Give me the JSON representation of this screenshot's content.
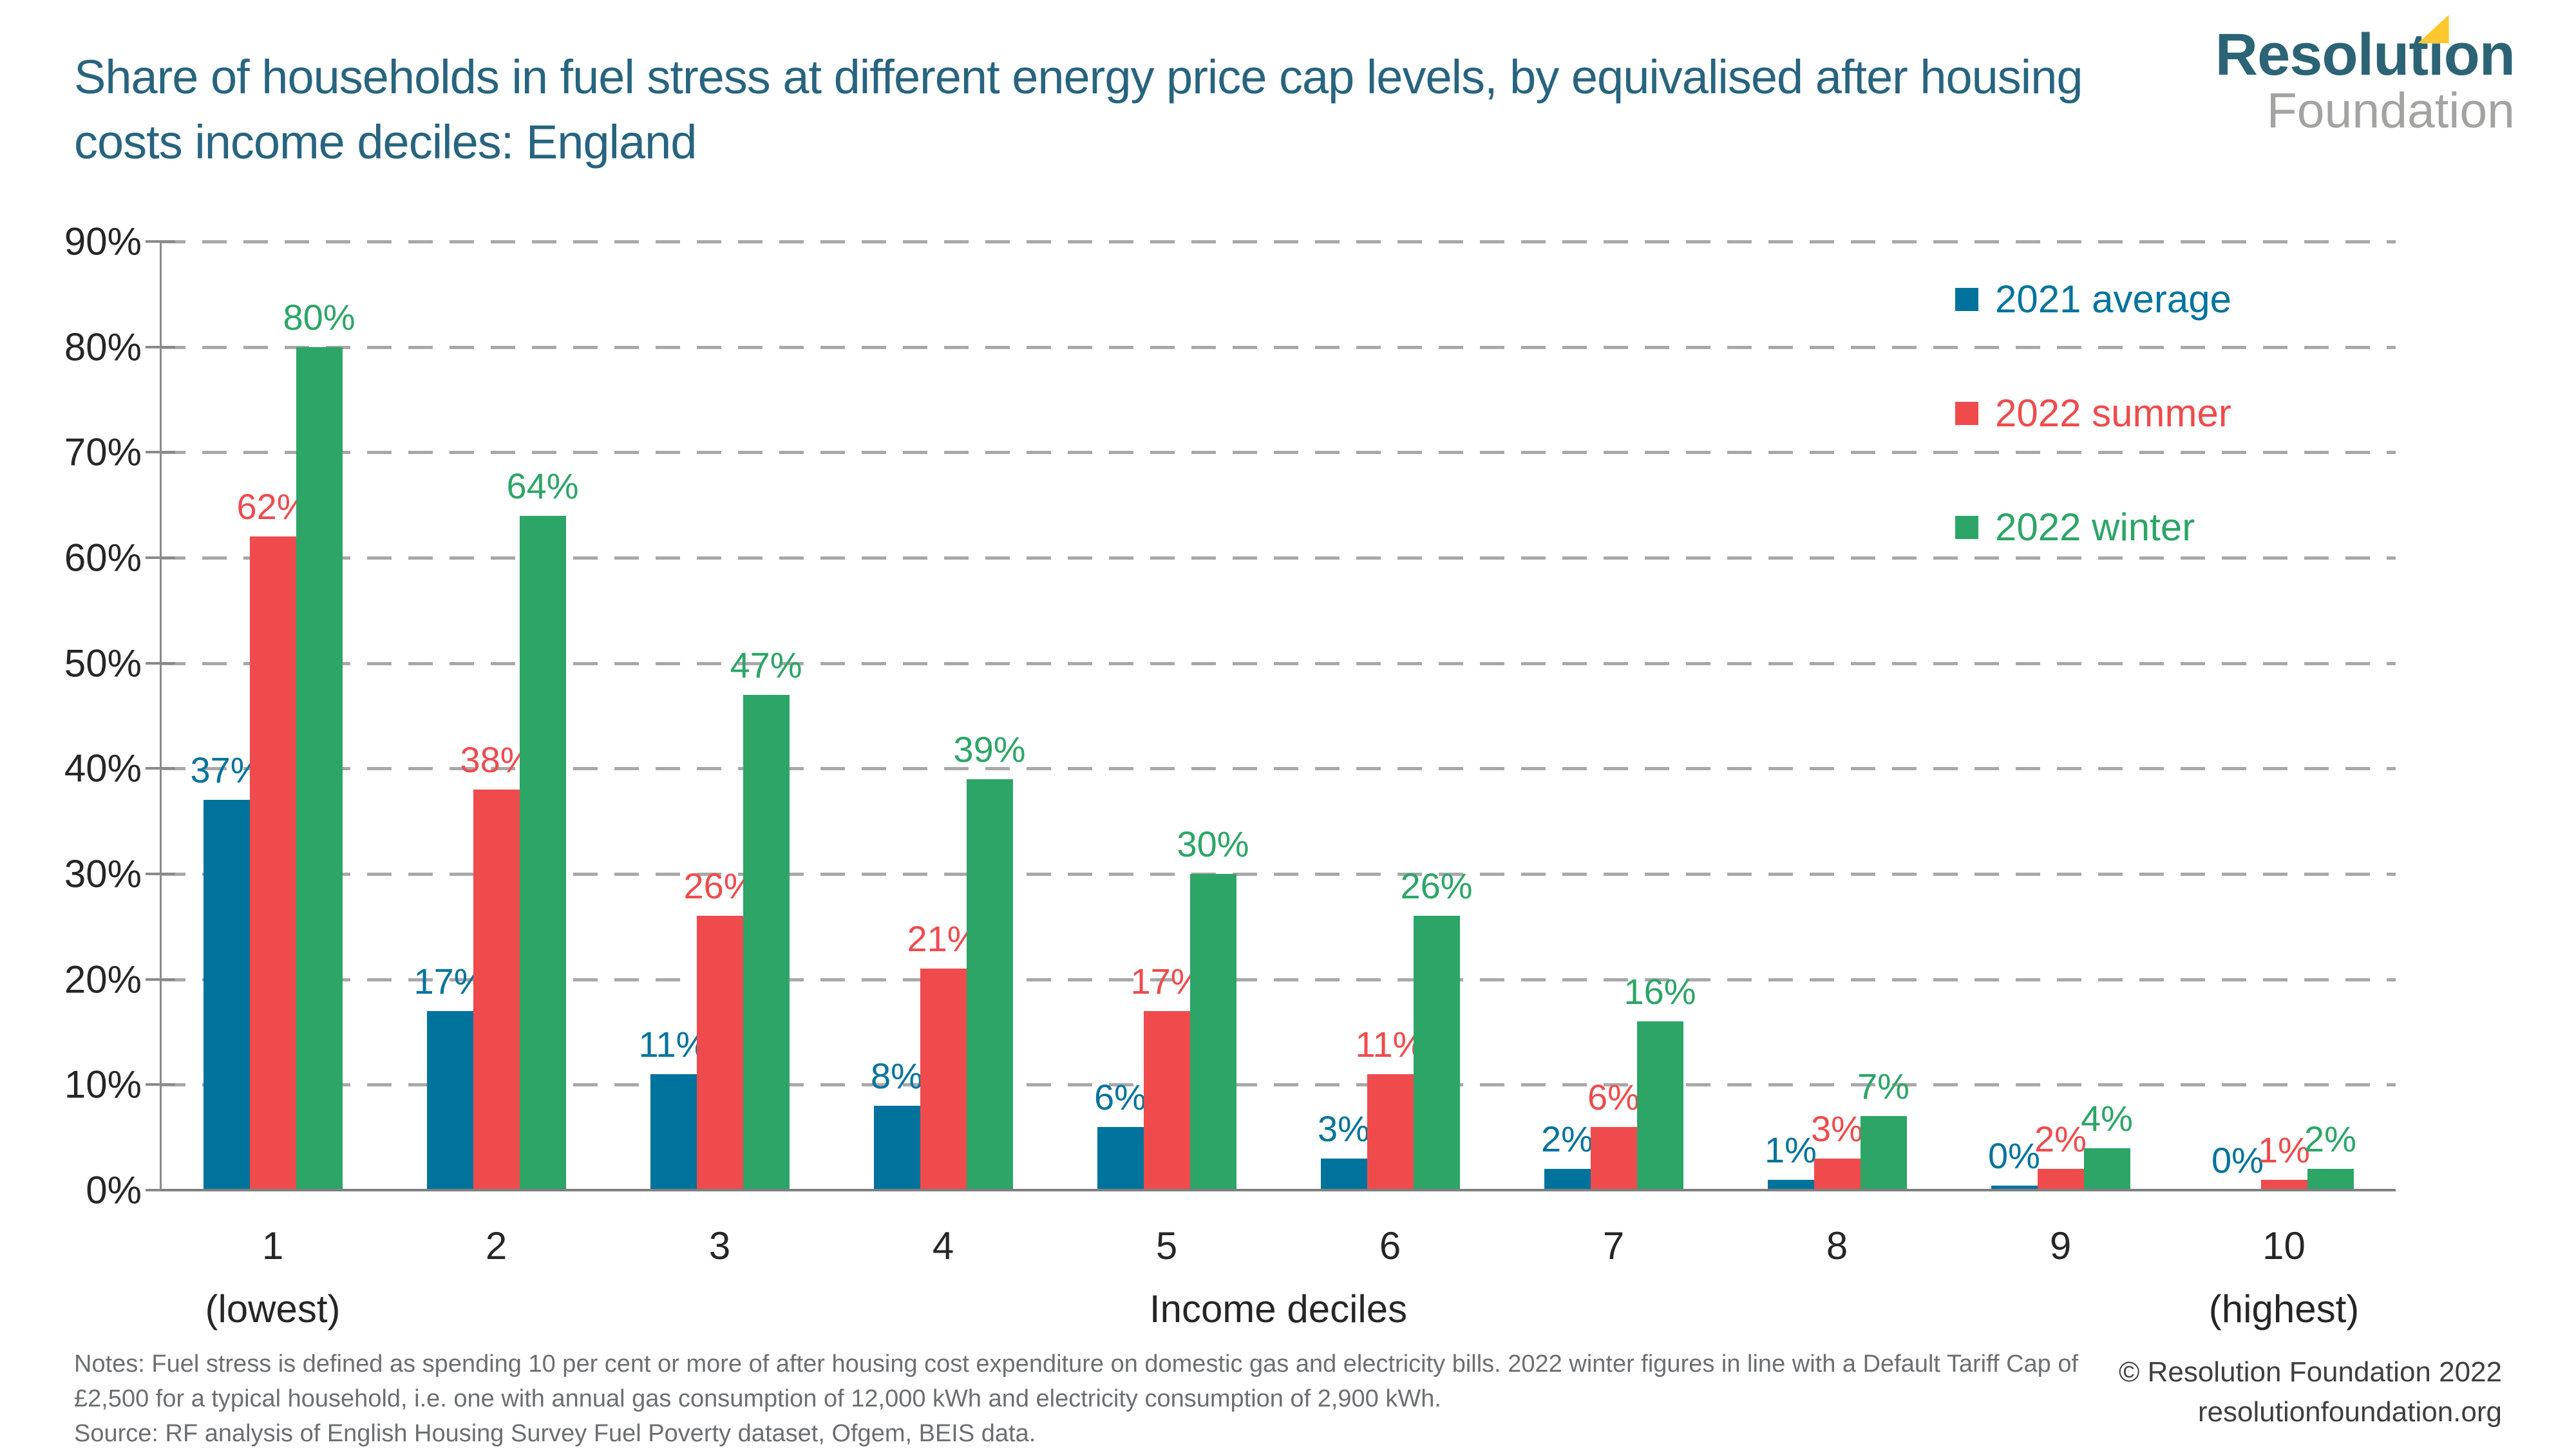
{
  "header": {
    "title_lines": [
      "Share of households in fuel stress at different energy price cap levels, by equivalised after housing",
      "costs income deciles: England"
    ]
  },
  "logo": {
    "brand": "Resolution",
    "sub": "Foundation",
    "brand_color": "#2c6476",
    "sub_color": "#a3a3a2",
    "flag_color": "#fdc82f"
  },
  "chart_data": {
    "type": "bar",
    "title": "Share of households in fuel stress at different energy price cap levels, by equivalised after housing costs income deciles: England",
    "categories": [
      "1",
      "2",
      "3",
      "4",
      "5",
      "6",
      "7",
      "8",
      "9",
      "10"
    ],
    "category_sublabels": {
      "first": "(lowest)",
      "last": "(highest)"
    },
    "xlabel": "Income deciles",
    "ylabel": "",
    "ylim": [
      0,
      90
    ],
    "ytick_step": 10,
    "ytick_suffix": "%",
    "grid": "dashed-horizontal",
    "legend_position": "upper-right",
    "data_label_suffix": "%",
    "series": [
      {
        "name": "2021 average",
        "color": "#00739d",
        "values": [
          37,
          17,
          11,
          8,
          6,
          3,
          2,
          1,
          0.4,
          0
        ],
        "labels": [
          "37%",
          "17%",
          "11%",
          "8%",
          "6%",
          "3%",
          "2%",
          "1%",
          "0%",
          "0%"
        ]
      },
      {
        "name": "2022 summer",
        "color": "#ef4b4d",
        "values": [
          62,
          38,
          26,
          21,
          17,
          11,
          6,
          3,
          2,
          1
        ],
        "labels": [
          "62%",
          "38%",
          "26%",
          "21%",
          "17%",
          "11%",
          "6%",
          "3%",
          "2%",
          "1%"
        ]
      },
      {
        "name": "2022 winter",
        "color": "#2ca567",
        "values": [
          80,
          64,
          47,
          39,
          30,
          26,
          16,
          7,
          4,
          2
        ],
        "labels": [
          "80%",
          "64%",
          "47%",
          "39%",
          "30%",
          "26%",
          "16%",
          "7%",
          "4%",
          "2%"
        ]
      }
    ]
  },
  "notes": {
    "text": "Notes: Fuel stress is defined as spending 10 per cent or more of after housing cost expenditure on domestic gas and electricity bills. 2022 winter figures in line with a Default Tariff Cap of £2,500 for a typical household, i.e. one with annual gas consumption of 12,000 kWh and electricity consumption of 2,900 kWh.",
    "source": "Source: RF analysis of English Housing Survey Fuel Poverty dataset, Ofgem, BEIS data."
  },
  "footer": {
    "copyright": "© Resolution Foundation 2022",
    "website": "resolutionfoundation.org"
  }
}
